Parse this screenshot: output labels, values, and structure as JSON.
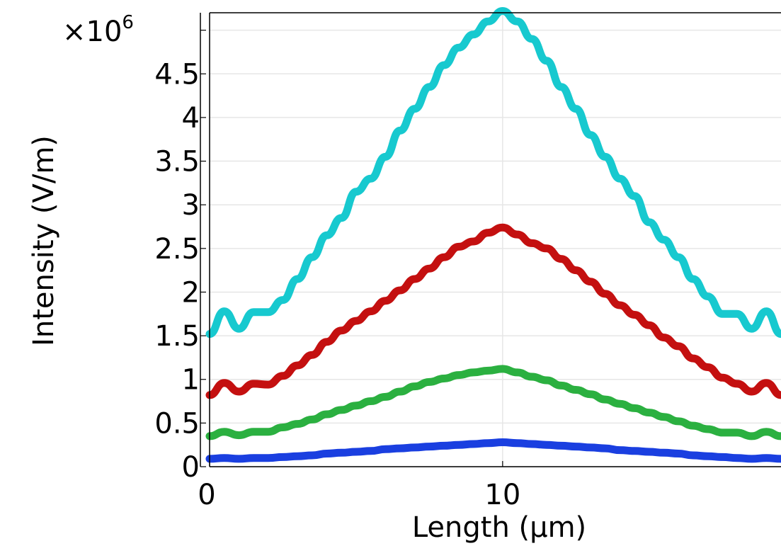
{
  "chart_data": {
    "type": "line",
    "title": "",
    "xlabel": "Length (µm)",
    "ylabel": "Intensity (V/m)",
    "y_multiplier": "×10",
    "y_multiplier_exponent": "6",
    "xlim": [
      0,
      19.5
    ],
    "ylim": [
      0,
      5.2
    ],
    "x_ticks": [
      0,
      10
    ],
    "x_tick_labels": [
      "0",
      "10"
    ],
    "y_ticks": [
      0,
      0.5,
      1,
      1.5,
      2,
      2.5,
      3,
      3.5,
      4,
      4.5
    ],
    "y_tick_labels": [
      "0",
      "0.5",
      "1",
      "1.5",
      "2",
      "2.5",
      "3",
      "3.5",
      "4",
      "4.5"
    ],
    "grid": true,
    "legend": "none",
    "x": [
      0,
      0.5,
      1,
      1.5,
      2,
      2.5,
      3,
      3.5,
      4,
      4.5,
      5,
      5.5,
      6,
      6.5,
      7,
      7.5,
      8,
      8.5,
      9,
      9.5,
      10,
      10.5,
      11,
      11.5,
      12,
      12.5,
      13,
      13.5,
      14,
      14.5,
      15,
      15.5,
      16,
      16.5,
      17,
      17.5,
      18,
      18.5,
      19,
      19.5
    ],
    "series": [
      {
        "color": "#1aa3a8",
        "stroke": "#17c9cf",
        "values": [
          1.52,
          1.78,
          1.58,
          1.77,
          1.77,
          1.91,
          2.15,
          2.4,
          2.65,
          2.85,
          3.15,
          3.3,
          3.55,
          3.85,
          4.1,
          4.35,
          4.6,
          4.8,
          4.95,
          5.1,
          5.22,
          5.1,
          4.9,
          4.65,
          4.35,
          4.1,
          3.8,
          3.55,
          3.3,
          3.1,
          2.8,
          2.6,
          2.4,
          2.15,
          1.95,
          1.75,
          1.75,
          1.58,
          1.78,
          1.52
        ]
      },
      {
        "color": "#c41010",
        "stroke": "#c41010",
        "values": [
          0.82,
          0.96,
          0.86,
          0.95,
          0.94,
          1.04,
          1.16,
          1.28,
          1.43,
          1.56,
          1.67,
          1.78,
          1.9,
          2.02,
          2.15,
          2.27,
          2.4,
          2.52,
          2.58,
          2.68,
          2.74,
          2.66,
          2.56,
          2.5,
          2.38,
          2.25,
          2.12,
          1.98,
          1.85,
          1.74,
          1.62,
          1.48,
          1.38,
          1.24,
          1.14,
          1.02,
          0.95,
          0.86,
          0.96,
          0.82
        ]
      },
      {
        "color": "#2bb040",
        "stroke": "#2bb040",
        "values": [
          0.35,
          0.4,
          0.36,
          0.4,
          0.4,
          0.45,
          0.49,
          0.54,
          0.6,
          0.65,
          0.7,
          0.75,
          0.8,
          0.86,
          0.92,
          0.97,
          1.01,
          1.05,
          1.08,
          1.1,
          1.12,
          1.08,
          1.03,
          0.99,
          0.93,
          0.88,
          0.83,
          0.77,
          0.72,
          0.67,
          0.62,
          0.57,
          0.52,
          0.47,
          0.43,
          0.39,
          0.39,
          0.35,
          0.4,
          0.35
        ]
      },
      {
        "color": "#1a3fe0",
        "stroke": "#1a3fe0",
        "values": [
          0.09,
          0.1,
          0.09,
          0.1,
          0.1,
          0.11,
          0.12,
          0.13,
          0.15,
          0.16,
          0.17,
          0.18,
          0.2,
          0.21,
          0.22,
          0.23,
          0.24,
          0.25,
          0.26,
          0.27,
          0.28,
          0.27,
          0.26,
          0.25,
          0.24,
          0.23,
          0.22,
          0.21,
          0.19,
          0.18,
          0.17,
          0.16,
          0.15,
          0.13,
          0.12,
          0.11,
          0.1,
          0.09,
          0.1,
          0.09
        ]
      }
    ]
  }
}
